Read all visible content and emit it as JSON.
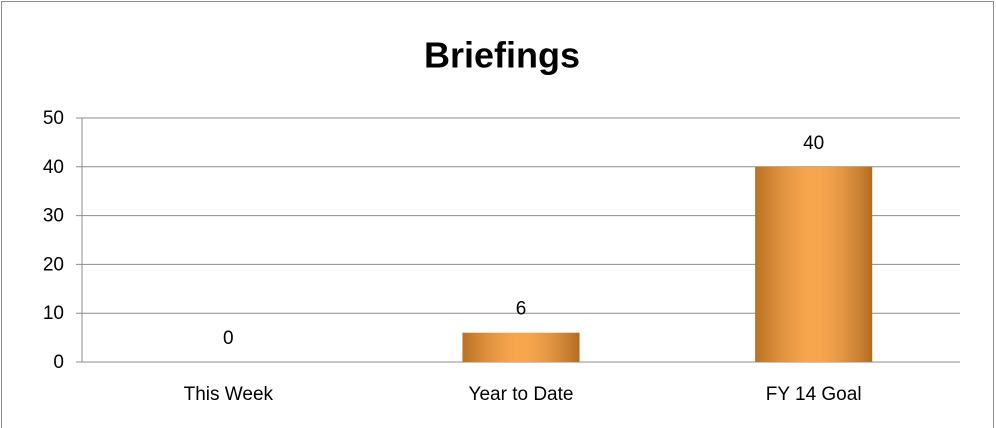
{
  "chart_data": {
    "type": "bar",
    "title": "Briefings",
    "categories": [
      "This Week",
      "Year to Date",
      "FY 14 Goal"
    ],
    "values": [
      0,
      6,
      40
    ],
    "color": "#f7962e",
    "ylim": [
      0,
      50
    ],
    "yticks": [
      0,
      10,
      20,
      30,
      40,
      50
    ],
    "grid": true,
    "data_labels": true
  }
}
